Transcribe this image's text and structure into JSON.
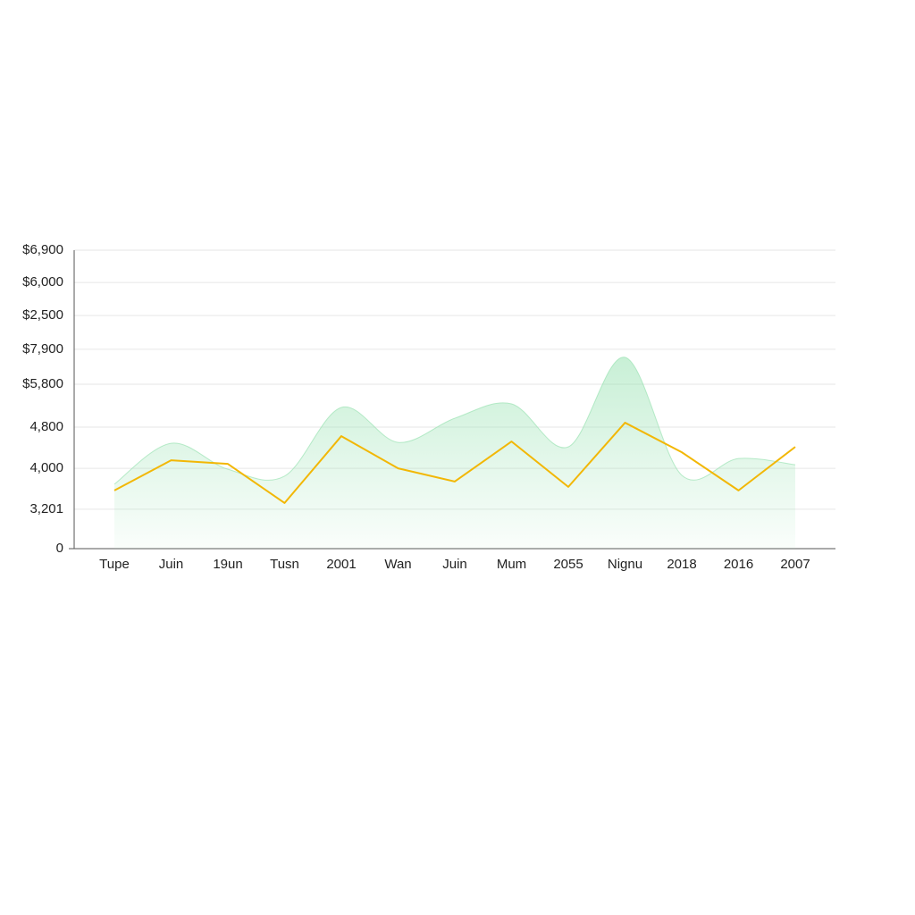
{
  "chart_data": {
    "type": "line",
    "categories": [
      "Tupe",
      "Juin",
      "19un",
      "Tusn",
      "2001",
      "Wan",
      "Juin",
      "Mum",
      "2055",
      "Nignu",
      "2018",
      "2016",
      "2007"
    ],
    "series": [
      {
        "type": "area",
        "color": "#9be3b4",
        "values": [
          21.6,
          35.3,
          26.6,
          24.3,
          47.3,
          35.6,
          43.7,
          48.5,
          34.1,
          64.1,
          24.6,
          30.2,
          28.1
        ]
      },
      {
        "type": "line",
        "color": "#f2b705",
        "values": [
          19.5,
          29.6,
          28.4,
          15.3,
          37.7,
          26.9,
          22.5,
          35.9,
          20.7,
          42.2,
          32.3,
          19.5,
          34.1
        ]
      }
    ],
    "ylim": [
      0,
      100
    ],
    "yticks": [
      0,
      {
        "value": 13.2,
        "label": "3,201"
      },
      {
        "value": 26.9,
        "label": "4,000"
      },
      {
        "value": 40.7,
        "label": "4,800"
      },
      {
        "value": 55.1,
        "label": "$5,800"
      },
      {
        "value": 66.8,
        "label": "$7,900"
      },
      {
        "value": 78.1,
        "label": "$2,500"
      },
      {
        "value": 89.2,
        "label": "$6,000"
      },
      {
        "value": 100,
        "label": "$6,900"
      }
    ],
    "grid": true
  }
}
